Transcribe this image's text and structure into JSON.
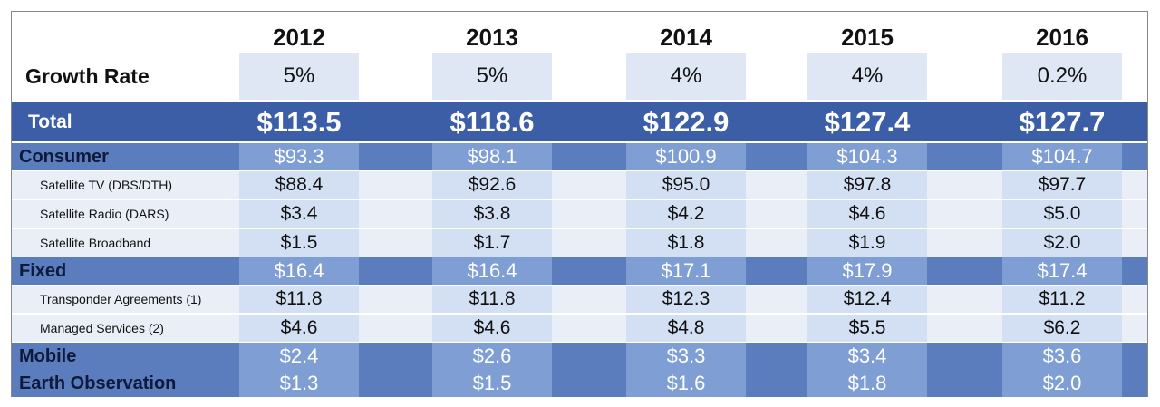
{
  "table": {
    "years": [
      "2012",
      "2013",
      "2014",
      "2015",
      "2016"
    ],
    "growth": {
      "label": "Growth Rate",
      "values": [
        "5%",
        "5%",
        "4%",
        "4%",
        "0.2%"
      ]
    },
    "total": {
      "label": "Total",
      "values": [
        "$113.5",
        "$118.6",
        "$122.9",
        "$127.4",
        "$127.7"
      ]
    },
    "segments": [
      {
        "label": "Consumer",
        "values": [
          "$93.3",
          "$98.1",
          "$100.9",
          "$104.3",
          "$104.7"
        ],
        "items": [
          {
            "label": "Satellite TV (DBS/DTH)",
            "values": [
              "$88.4",
              "$92.6",
              "$95.0",
              "$97.8",
              "$97.7"
            ]
          },
          {
            "label": "Satellite Radio (DARS)",
            "values": [
              "$3.4",
              "$3.8",
              "$4.2",
              "$4.6",
              "$5.0"
            ]
          },
          {
            "label": "Satellite Broadband",
            "values": [
              "$1.5",
              "$1.7",
              "$1.8",
              "$1.9",
              "$2.0"
            ]
          }
        ]
      },
      {
        "label": "Fixed",
        "values": [
          "$16.4",
          "$16.4",
          "$17.1",
          "$17.9",
          "$17.4"
        ],
        "items": [
          {
            "label": "Transponder Agreements (1)",
            "values": [
              "$11.8",
              "$11.8",
              "$12.3",
              "$12.4",
              "$11.2"
            ]
          },
          {
            "label": "Managed Services (2)",
            "values": [
              "$4.6",
              "$4.6",
              "$4.8",
              "$5.5",
              "$6.2"
            ]
          }
        ]
      },
      {
        "label": "Mobile",
        "values": [
          "$2.4",
          "$2.6",
          "$3.3",
          "$3.4",
          "$3.6"
        ],
        "items": []
      },
      {
        "label": "Earth Observation",
        "values": [
          "$1.3",
          "$1.5",
          "$1.6",
          "$1.8",
          "$2.0"
        ],
        "items": []
      }
    ]
  }
}
